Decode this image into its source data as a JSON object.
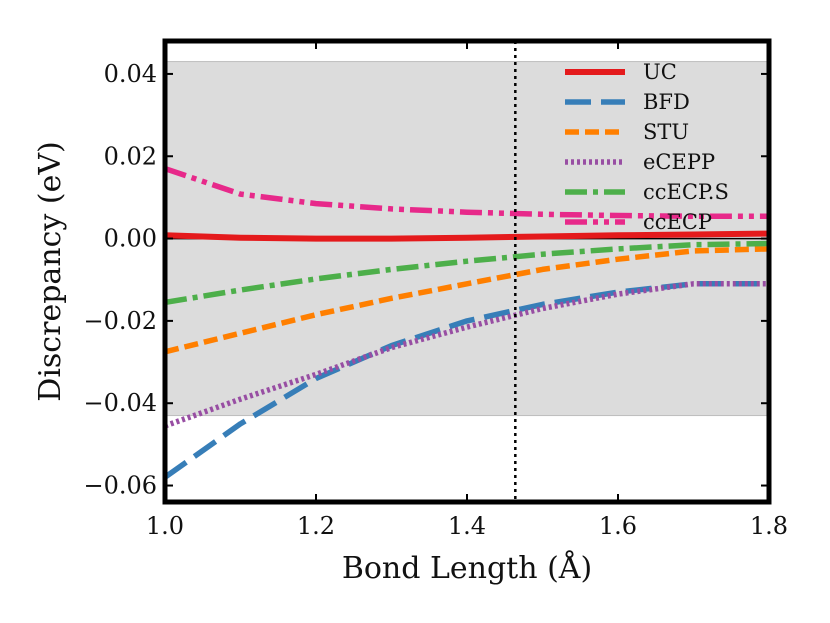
{
  "chart_data": {
    "type": "line",
    "title": "",
    "xlabel": "Bond Length (Å)",
    "ylabel": "Discrepancy (eV)",
    "xlim": [
      1.0,
      1.8
    ],
    "ylim": [
      -0.064,
      0.048
    ],
    "xticks": [
      1.0,
      1.2,
      1.4,
      1.6,
      1.8
    ],
    "xtick_labels": [
      "1.0",
      "1.2",
      "1.4",
      "1.6",
      "1.8"
    ],
    "yticks": [
      -0.06,
      -0.04,
      -0.02,
      0.0,
      0.02,
      0.04
    ],
    "ytick_labels": [
      "−0.06",
      "−0.04",
      "−0.02",
      "0.00",
      "0.02",
      "0.04"
    ],
    "shaded_band": [
      -0.043,
      0.043
    ],
    "zero_line": 0.0,
    "vertical_line_x": 1.464,
    "legend_position": "top-right",
    "series": [
      {
        "name": "UC",
        "color": "#e41a1c",
        "style": "solid",
        "x": [
          1.0,
          1.1,
          1.2,
          1.3,
          1.4,
          1.5,
          1.6,
          1.7,
          1.8
        ],
        "y": [
          0.0008,
          0.0002,
          0.0,
          0.0,
          0.0002,
          0.0005,
          0.0008,
          0.001,
          0.0012
        ]
      },
      {
        "name": "BFD",
        "color": "#377eb8",
        "style": "long-dash",
        "x": [
          1.0,
          1.1,
          1.2,
          1.3,
          1.4,
          1.5,
          1.6,
          1.7,
          1.8
        ],
        "y": [
          -0.058,
          -0.045,
          -0.034,
          -0.026,
          -0.02,
          -0.016,
          -0.013,
          -0.011,
          -0.011
        ]
      },
      {
        "name": "STU",
        "color": "#ff7f00",
        "style": "dash",
        "x": [
          1.0,
          1.1,
          1.2,
          1.3,
          1.4,
          1.5,
          1.6,
          1.7,
          1.8
        ],
        "y": [
          -0.0275,
          -0.023,
          -0.0185,
          -0.0145,
          -0.011,
          -0.0075,
          -0.005,
          -0.003,
          -0.0025
        ]
      },
      {
        "name": "eCEPP",
        "color": "#984ea3",
        "style": "dotted",
        "x": [
          1.0,
          1.1,
          1.2,
          1.3,
          1.4,
          1.5,
          1.6,
          1.7,
          1.8
        ],
        "y": [
          -0.0455,
          -0.039,
          -0.033,
          -0.0265,
          -0.0215,
          -0.017,
          -0.0135,
          -0.011,
          -0.011
        ]
      },
      {
        "name": "ccECP.S",
        "color": "#4daf4a",
        "style": "dash-dot",
        "x": [
          1.0,
          1.1,
          1.2,
          1.3,
          1.4,
          1.5,
          1.6,
          1.7,
          1.8
        ],
        "y": [
          -0.0155,
          -0.0125,
          -0.0098,
          -0.0075,
          -0.0055,
          -0.0038,
          -0.0025,
          -0.0015,
          -0.0012
        ]
      },
      {
        "name": "ccECP",
        "color": "#e7298a",
        "style": "dash-dot-dot",
        "x": [
          1.0,
          1.1,
          1.2,
          1.3,
          1.4,
          1.5,
          1.6,
          1.7,
          1.8
        ],
        "y": [
          0.017,
          0.0108,
          0.0085,
          0.0072,
          0.0064,
          0.0059,
          0.0056,
          0.0054,
          0.0054
        ]
      }
    ]
  }
}
